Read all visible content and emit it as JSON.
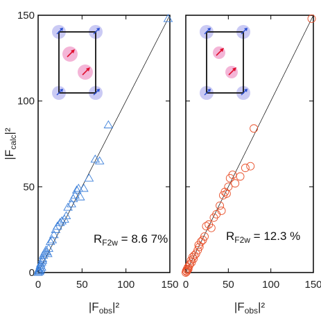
{
  "chart_data": [
    {
      "type": "scatter",
      "xlim": [
        0,
        150
      ],
      "ylim": [
        0,
        150
      ],
      "xticks": [
        "0",
        "50",
        "100",
        "150"
      ],
      "yticks": [
        "0",
        "50",
        "100",
        "150"
      ],
      "xlabel": {
        "base": "|F",
        "sub": "obs",
        "tail": "|²"
      },
      "ylabel": {
        "base": "|F",
        "sub": "calc",
        "tail": "|²"
      },
      "annotation": {
        "base": "R",
        "sub": "F2w",
        "tail": " = 8.6 7%"
      },
      "marker": "triangle",
      "color": "#3b7fd9",
      "fit_line": [
        [
          0,
          0
        ],
        [
          150,
          150
        ]
      ],
      "inset": "unit-cell-schematic",
      "points": [
        [
          0,
          0
        ],
        [
          0.5,
          1
        ],
        [
          1,
          2
        ],
        [
          1.5,
          0.5
        ],
        [
          2,
          3
        ],
        [
          2,
          1
        ],
        [
          2.5,
          4
        ],
        [
          3,
          2
        ],
        [
          3,
          5
        ],
        [
          4,
          6
        ],
        [
          4,
          3
        ],
        [
          5,
          8
        ],
        [
          5,
          7
        ],
        [
          6,
          10
        ],
        [
          7,
          11
        ],
        [
          8,
          12
        ],
        [
          9,
          13
        ],
        [
          10,
          12
        ],
        [
          11,
          11
        ],
        [
          12,
          14
        ],
        [
          14,
          18
        ],
        [
          16,
          19
        ],
        [
          18,
          22
        ],
        [
          20,
          25
        ],
        [
          22,
          27
        ],
        [
          25,
          29
        ],
        [
          27,
          30
        ],
        [
          30,
          31
        ],
        [
          32,
          33
        ],
        [
          34,
          38
        ],
        [
          38,
          40
        ],
        [
          40,
          43
        ],
        [
          42,
          45
        ],
        [
          44,
          48
        ],
        [
          46,
          49
        ],
        [
          48,
          44
        ],
        [
          52,
          49
        ],
        [
          58,
          55
        ],
        [
          65,
          66
        ],
        [
          70,
          65
        ],
        [
          80,
          86
        ],
        [
          148,
          148
        ]
      ]
    },
    {
      "type": "scatter",
      "xlim": [
        0,
        150
      ],
      "ylim": [
        0,
        150
      ],
      "xticks": [
        "0",
        "50",
        "100",
        "150"
      ],
      "yticks": [
        "",
        "",
        "",
        ""
      ],
      "xlabel": {
        "base": "|F",
        "sub": "obs",
        "tail": "|²"
      },
      "annotation": {
        "base": "R",
        "sub": "F2w",
        "tail": " = 12.3 %"
      },
      "marker": "circle",
      "color": "#e8502a",
      "fit_line": [
        [
          0,
          0
        ],
        [
          150,
          150
        ]
      ],
      "inset": "unit-cell-schematic",
      "points": [
        [
          0,
          0
        ],
        [
          0.5,
          1
        ],
        [
          1,
          0.5
        ],
        [
          1.5,
          2
        ],
        [
          2,
          1.5
        ],
        [
          2.5,
          3
        ],
        [
          3,
          2
        ],
        [
          4,
          4
        ],
        [
          5,
          5
        ],
        [
          6,
          7
        ],
        [
          7,
          6
        ],
        [
          8,
          9
        ],
        [
          9,
          8
        ],
        [
          10,
          10
        ],
        [
          12,
          11
        ],
        [
          14,
          13
        ],
        [
          15,
          16
        ],
        [
          16,
          15
        ],
        [
          18,
          18
        ],
        [
          20,
          19
        ],
        [
          22,
          21
        ],
        [
          24,
          27
        ],
        [
          27,
          28
        ],
        [
          30,
          26
        ],
        [
          33,
          32
        ],
        [
          36,
          34
        ],
        [
          40,
          39
        ],
        [
          42,
          36
        ],
        [
          44,
          45
        ],
        [
          46,
          47
        ],
        [
          48,
          46
        ],
        [
          50,
          50
        ],
        [
          52,
          55
        ],
        [
          55,
          57
        ],
        [
          58,
          52
        ],
        [
          64,
          56
        ],
        [
          70,
          61
        ],
        [
          76,
          62
        ],
        [
          80,
          84
        ],
        [
          148,
          148
        ]
      ]
    }
  ]
}
